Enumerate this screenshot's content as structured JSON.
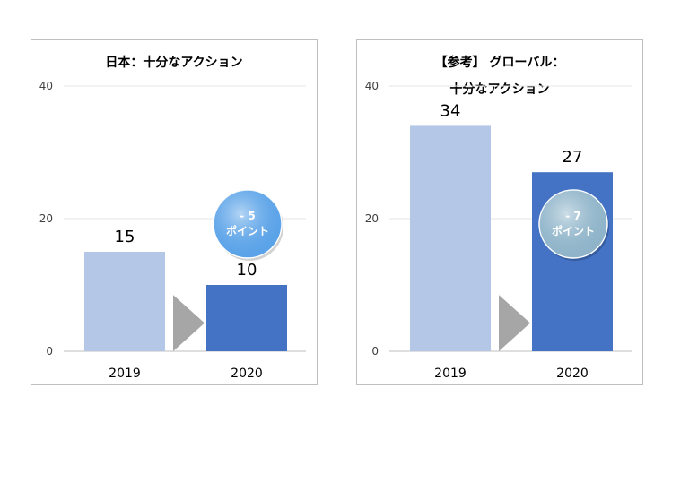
{
  "chart_data": [
    {
      "type": "bar",
      "title": "日本：十分なアクション",
      "categories": [
        "2019",
        "2020"
      ],
      "values": [
        15,
        10
      ],
      "data_labels": [
        "15",
        "10"
      ],
      "yticks": [
        0,
        20,
        40
      ],
      "ylim": [
        0,
        40
      ],
      "grid": true,
      "bar_colors": [
        "#b4c7e7",
        "#4472c4"
      ],
      "change_badge": {
        "line1": "- 5",
        "line2": "ポイント",
        "color": "#5ba3e8"
      }
    },
    {
      "type": "bar",
      "title_lines": [
        "【参考】 グローバル：",
        "十分なアクション"
      ],
      "categories": [
        "2019",
        "2020"
      ],
      "values": [
        34,
        27
      ],
      "data_labels": [
        "34",
        "27"
      ],
      "yticks": [
        0,
        20,
        40
      ],
      "ylim": [
        0,
        40
      ],
      "grid": true,
      "bar_colors": [
        "#b4c7e7",
        "#4472c4"
      ],
      "change_badge": {
        "line1": "- 7",
        "line2": "ポイント",
        "color": "#8fb4c9"
      }
    }
  ]
}
